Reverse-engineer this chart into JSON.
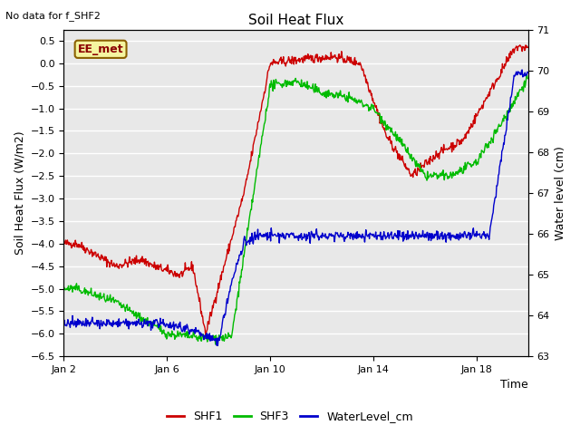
{
  "title": "Soil Heat Flux",
  "top_left_text": "No data for f_SHF2",
  "box_label": "EE_met",
  "ylabel_left": "Soil Heat Flux (W/m2)",
  "ylabel_right": "Water level (cm)",
  "xlabel": "Time",
  "ylim_left": [
    -6.5,
    0.75
  ],
  "ylim_right": [
    63.0,
    71.0
  ],
  "yticks_left": [
    0.5,
    0.0,
    -0.5,
    -1.0,
    -1.5,
    -2.0,
    -2.5,
    -3.0,
    -3.5,
    -4.0,
    -4.5,
    -5.0,
    -5.5,
    -6.0,
    -6.5
  ],
  "yticks_right": [
    71.0,
    70.0,
    69.0,
    68.0,
    67.0,
    66.0,
    65.0,
    64.0,
    63.0
  ],
  "xtick_labels": [
    "Jan 2",
    "Jan 6",
    "Jan 10",
    "Jan 14",
    "Jan 18"
  ],
  "xtick_positions": [
    0,
    4,
    8,
    12,
    16
  ],
  "xlim": [
    0,
    18
  ],
  "legend_labels": [
    "SHF1",
    "SHF3",
    "WaterLevel_cm"
  ],
  "legend_colors": [
    "#cc0000",
    "#00bb00",
    "#0000cc"
  ],
  "line_colors": [
    "#cc0000",
    "#00bb00",
    "#0000cc"
  ],
  "bg_color": "#e8e8e8",
  "grid_color": "#ffffff",
  "figsize": [
    6.4,
    4.8
  ],
  "dpi": 100
}
